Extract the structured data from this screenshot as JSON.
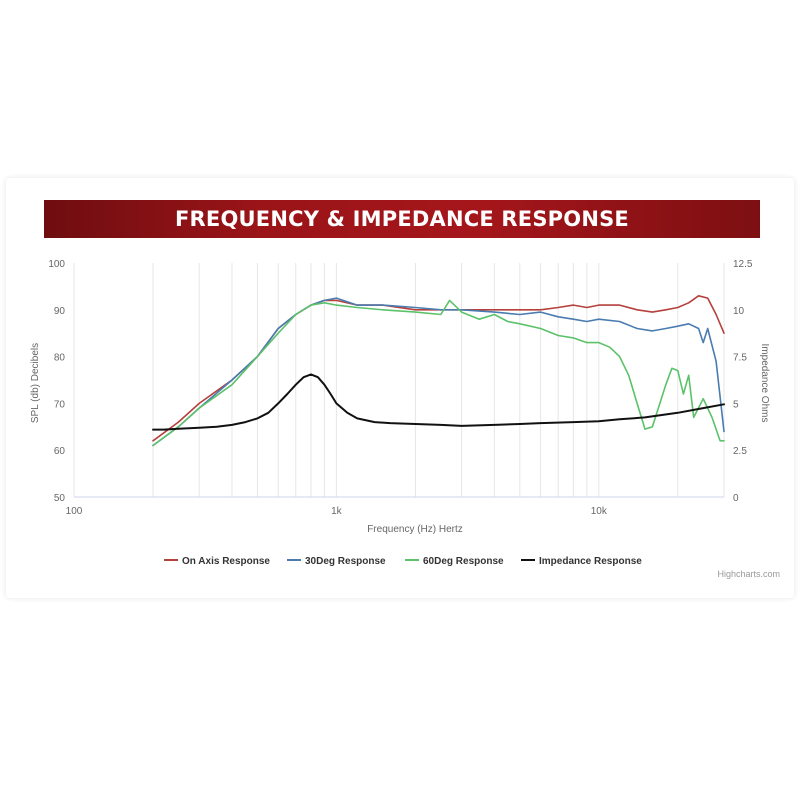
{
  "banner": {
    "title": "FREQUENCY & IMPEDANCE RESPONSE"
  },
  "credit": "Highcharts.com",
  "chart_data": {
    "type": "line",
    "title": "FREQUENCY & IMPEDANCE RESPONSE",
    "xlabel": "Frequency (Hz) Hertz",
    "xscale": "log",
    "xlim": [
      100,
      30000
    ],
    "x_ticks": [
      100,
      1000,
      10000
    ],
    "x_tick_labels": [
      "100",
      "1k",
      "10k"
    ],
    "y_left": {
      "label": "SPL (db) Decibels",
      "lim": [
        50,
        100
      ],
      "ticks": [
        50,
        60,
        70,
        80,
        90,
        100
      ],
      "tick_labels": [
        "50",
        "60",
        "70",
        "80",
        "90",
        "100"
      ]
    },
    "y_right": {
      "label": "Impedance Ohms",
      "lim": [
        0,
        12.5
      ],
      "ticks": [
        0,
        2.5,
        5,
        7.5,
        10,
        12.5
      ],
      "tick_labels": [
        "0",
        "2.5",
        "5",
        "7.5",
        "10",
        "12.5"
      ]
    },
    "grid": "vertical",
    "legend_position": "bottom",
    "series": [
      {
        "name": "On Axis Response",
        "color": "#b5403c",
        "axis": "left",
        "x": [
          200,
          250,
          300,
          400,
          500,
          600,
          700,
          800,
          900,
          1000,
          1200,
          1500,
          2000,
          2500,
          3000,
          4000,
          5000,
          6000,
          7000,
          8000,
          9000,
          10000,
          12000,
          14000,
          16000,
          18000,
          20000,
          22000,
          24000,
          26000,
          28000,
          30000
        ],
        "y": [
          62,
          66,
          70,
          75,
          80,
          86,
          89,
          91,
          92,
          92,
          91,
          91,
          90,
          90,
          90,
          90,
          90,
          90,
          90.5,
          91,
          90.5,
          91,
          91,
          90,
          89.5,
          90,
          90.5,
          91.5,
          93,
          92.5,
          89,
          85
        ]
      },
      {
        "name": "30Deg Response",
        "color": "#4a7cb0",
        "axis": "left",
        "x": [
          200,
          250,
          300,
          400,
          500,
          600,
          700,
          800,
          900,
          1000,
          1200,
          1500,
          2000,
          2500,
          3000,
          4000,
          5000,
          6000,
          7000,
          8000,
          9000,
          10000,
          12000,
          14000,
          16000,
          18000,
          20000,
          22000,
          24000,
          25000,
          26000,
          28000,
          30000
        ],
        "y": [
          61,
          65,
          69,
          75,
          80,
          86,
          89,
          91,
          92,
          92.5,
          91,
          91,
          90.5,
          90,
          90,
          89.5,
          89,
          89.5,
          88.5,
          88,
          87.5,
          88,
          87.5,
          86,
          85.5,
          86,
          86.5,
          87,
          86,
          83,
          86,
          79,
          64
        ]
      },
      {
        "name": "60Deg Response",
        "color": "#5cc26a",
        "axis": "left",
        "x": [
          200,
          250,
          300,
          400,
          500,
          600,
          700,
          800,
          900,
          1000,
          1200,
          1500,
          2000,
          2500,
          2700,
          3000,
          3500,
          4000,
          4500,
          5000,
          6000,
          7000,
          8000,
          9000,
          10000,
          11000,
          12000,
          13000,
          14000,
          15000,
          16000,
          18000,
          19000,
          20000,
          21000,
          22000,
          23000,
          25000,
          27000,
          29000,
          30000
        ],
        "y": [
          61,
          65,
          69,
          74,
          80,
          85,
          89,
          91,
          91.5,
          91,
          90.5,
          90,
          89.5,
          89,
          92,
          89.5,
          88,
          89,
          87.5,
          87,
          86,
          84.5,
          84,
          83,
          83,
          82,
          80,
          76,
          70,
          64.5,
          65,
          74,
          77.5,
          77,
          72,
          76,
          67,
          71,
          67,
          62,
          62
        ]
      },
      {
        "name": "Impedance Response",
        "color": "#111111",
        "axis": "right",
        "x": [
          200,
          220,
          250,
          300,
          350,
          400,
          450,
          500,
          550,
          600,
          650,
          700,
          750,
          800,
          850,
          900,
          950,
          1000,
          1100,
          1200,
          1400,
          1600,
          2000,
          2500,
          3000,
          4000,
          5000,
          6000,
          8000,
          10000,
          12000,
          15000,
          20000,
          25000,
          30000
        ],
        "y": [
          3.6,
          3.6,
          3.65,
          3.7,
          3.75,
          3.85,
          4.0,
          4.2,
          4.5,
          5.0,
          5.5,
          6.0,
          6.4,
          6.55,
          6.4,
          6.0,
          5.5,
          5.0,
          4.5,
          4.2,
          4.0,
          3.95,
          3.9,
          3.85,
          3.8,
          3.85,
          3.9,
          3.95,
          4.0,
          4.05,
          4.15,
          4.25,
          4.5,
          4.75,
          4.95
        ]
      }
    ]
  }
}
